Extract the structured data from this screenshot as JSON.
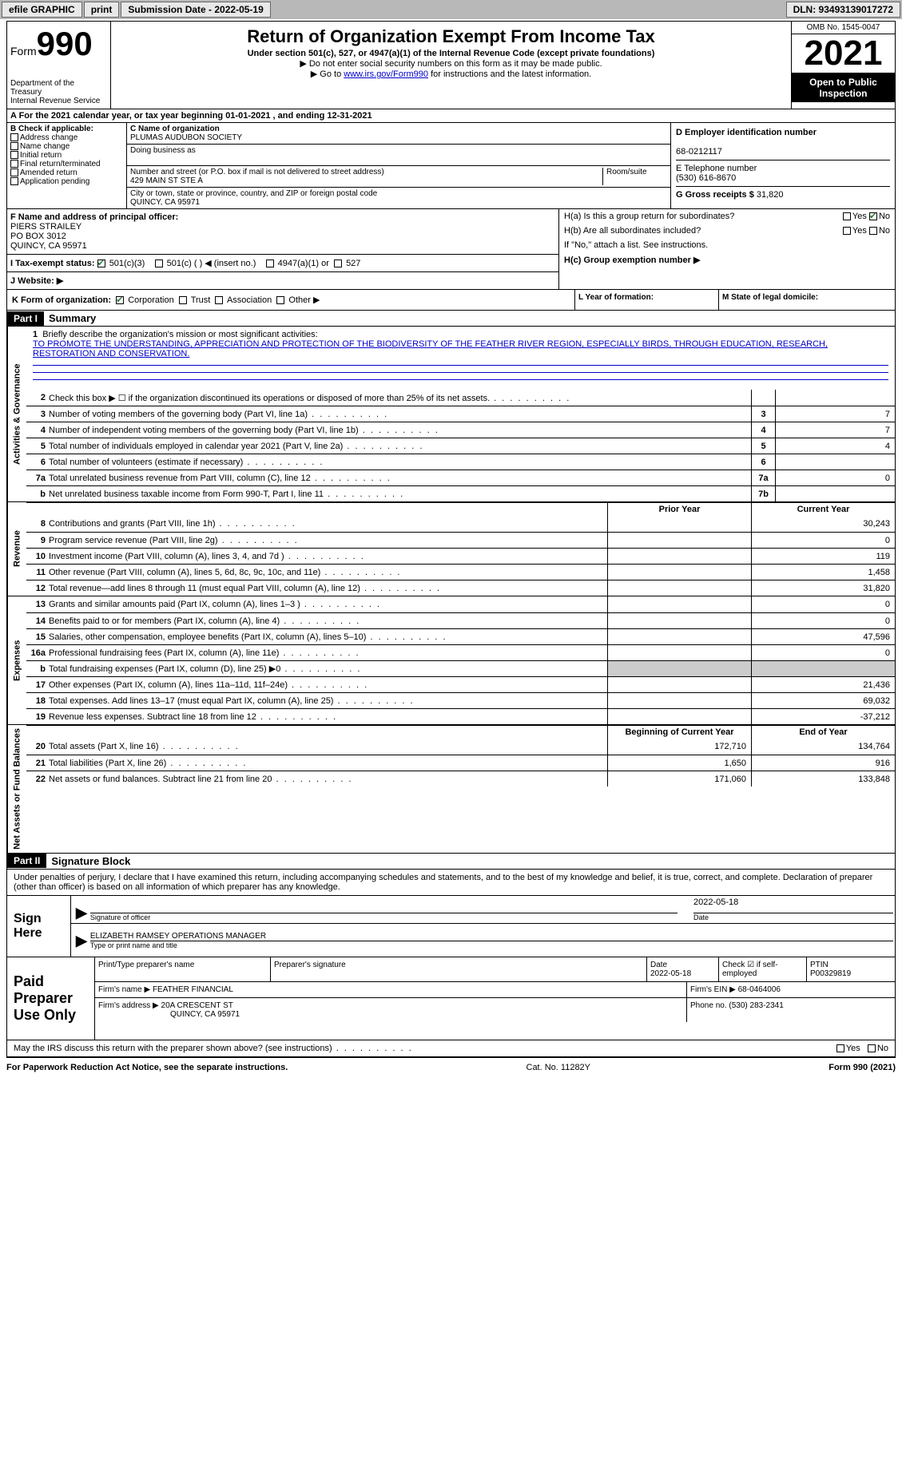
{
  "topbar": {
    "efile": "efile GRAPHIC",
    "print": "print",
    "submission_label": "Submission Date - 2022-05-19",
    "dln": "DLN: 93493139017272"
  },
  "header": {
    "form_label": "Form",
    "form_num": "990",
    "title": "Return of Organization Exempt From Income Tax",
    "subtitle": "Under section 501(c), 527, or 4947(a)(1) of the Internal Revenue Code (except private foundations)",
    "note1": "▶ Do not enter social security numbers on this form as it may be made public.",
    "note2_pre": "▶ Go to ",
    "note2_link": "www.irs.gov/Form990",
    "note2_post": " for instructions and the latest information.",
    "dept": "Department of the Treasury",
    "irs": "Internal Revenue Service",
    "omb": "OMB No. 1545-0047",
    "year": "2021",
    "open_pub": "Open to Public Inspection"
  },
  "row_a": "A For the 2021 calendar year, or tax year beginning 01-01-2021    , and ending 12-31-2021",
  "col_b": {
    "label": "B Check if applicable:",
    "opts": [
      "Address change",
      "Name change",
      "Initial return",
      "Final return/terminated",
      "Amended return",
      "Application pending"
    ]
  },
  "col_c": {
    "name_label": "C Name of organization",
    "name": "PLUMAS AUDUBON SOCIETY",
    "dba_label": "Doing business as",
    "dba": "",
    "street_label": "Number and street (or P.O. box if mail is not delivered to street address)",
    "street": "429 MAIN ST STE A",
    "room_label": "Room/suite",
    "city_label": "City or town, state or province, country, and ZIP or foreign postal code",
    "city": "QUINCY, CA  95971"
  },
  "col_d": {
    "ein_label": "D Employer identification number",
    "ein": "68-0212117",
    "phone_label": "E Telephone number",
    "phone": "(530) 616-8670",
    "gross_label": "G Gross receipts $",
    "gross": "31,820"
  },
  "section_f": {
    "label": "F Name and address of principal officer:",
    "name": "PIERS STRAILEY",
    "addr1": "PO BOX 3012",
    "addr2": "QUINCY, CA  95971"
  },
  "section_h": {
    "ha": "H(a)  Is this a group return for subordinates?",
    "ha_yes": "Yes",
    "ha_no": "No",
    "hb": "H(b)  Are all subordinates included?",
    "hb_note": "If \"No,\" attach a list. See instructions.",
    "hc": "H(c)  Group exemption number ▶"
  },
  "section_i": {
    "label": "I Tax-exempt status:",
    "opt1": "501(c)(3)",
    "opt2": "501(c) (  ) ◀ (insert no.)",
    "opt3": "4947(a)(1) or",
    "opt4": "527"
  },
  "section_j": "J  Website: ▶",
  "section_k": "K Form of organization:",
  "k_opts": [
    "Corporation",
    "Trust",
    "Association",
    "Other ▶"
  ],
  "section_l": "L Year of formation:",
  "section_m": "M State of legal domicile:",
  "part1": {
    "tag": "Part I",
    "title": "Summary"
  },
  "mission": {
    "num": "1",
    "label": "Briefly describe the organization's mission or most significant activities:",
    "text": "TO PROMOTE THE UNDERSTANDING, APPRECIATION AND PROTECTION OF THE BIODIVERSITY OF THE FEATHER RIVER REGION, ESPECIALLY BIRDS, THROUGH EDUCATION, RESEARCH, RESTORATION AND CONSERVATION."
  },
  "side_labels": {
    "gov": "Activities & Governance",
    "rev": "Revenue",
    "exp": "Expenses",
    "net": "Net Assets or Fund Balances"
  },
  "lines_gov": [
    {
      "num": "2",
      "desc": "Check this box ▶ ☐ if the organization discontinued its operations or disposed of more than 25% of its net assets.",
      "box": "",
      "val": ""
    },
    {
      "num": "3",
      "desc": "Number of voting members of the governing body (Part VI, line 1a)",
      "box": "3",
      "val": "7"
    },
    {
      "num": "4",
      "desc": "Number of independent voting members of the governing body (Part VI, line 1b)",
      "box": "4",
      "val": "7"
    },
    {
      "num": "5",
      "desc": "Total number of individuals employed in calendar year 2021 (Part V, line 2a)",
      "box": "5",
      "val": "4"
    },
    {
      "num": "6",
      "desc": "Total number of volunteers (estimate if necessary)",
      "box": "6",
      "val": ""
    },
    {
      "num": "7a",
      "desc": "Total unrelated business revenue from Part VIII, column (C), line 12",
      "box": "7a",
      "val": "0"
    },
    {
      "num": "b",
      "desc": "Net unrelated business taxable income from Form 990-T, Part I, line 11",
      "box": "7b",
      "val": ""
    }
  ],
  "col_headers": {
    "prior": "Prior Year",
    "current": "Current Year"
  },
  "lines_rev": [
    {
      "num": "8",
      "desc": "Contributions and grants (Part VIII, line 1h)",
      "prior": "",
      "cur": "30,243"
    },
    {
      "num": "9",
      "desc": "Program service revenue (Part VIII, line 2g)",
      "prior": "",
      "cur": "0"
    },
    {
      "num": "10",
      "desc": "Investment income (Part VIII, column (A), lines 3, 4, and 7d )",
      "prior": "",
      "cur": "119"
    },
    {
      "num": "11",
      "desc": "Other revenue (Part VIII, column (A), lines 5, 6d, 8c, 9c, 10c, and 11e)",
      "prior": "",
      "cur": "1,458"
    },
    {
      "num": "12",
      "desc": "Total revenue—add lines 8 through 11 (must equal Part VIII, column (A), line 12)",
      "prior": "",
      "cur": "31,820"
    }
  ],
  "lines_exp": [
    {
      "num": "13",
      "desc": "Grants and similar amounts paid (Part IX, column (A), lines 1–3 )",
      "prior": "",
      "cur": "0"
    },
    {
      "num": "14",
      "desc": "Benefits paid to or for members (Part IX, column (A), line 4)",
      "prior": "",
      "cur": "0"
    },
    {
      "num": "15",
      "desc": "Salaries, other compensation, employee benefits (Part IX, column (A), lines 5–10)",
      "prior": "",
      "cur": "47,596"
    },
    {
      "num": "16a",
      "desc": "Professional fundraising fees (Part IX, column (A), line 11e)",
      "prior": "",
      "cur": "0"
    },
    {
      "num": "b",
      "desc": "Total fundraising expenses (Part IX, column (D), line 25) ▶0",
      "prior": "shaded",
      "cur": "shaded"
    },
    {
      "num": "17",
      "desc": "Other expenses (Part IX, column (A), lines 11a–11d, 11f–24e)",
      "prior": "",
      "cur": "21,436"
    },
    {
      "num": "18",
      "desc": "Total expenses. Add lines 13–17 (must equal Part IX, column (A), line 25)",
      "prior": "",
      "cur": "69,032"
    },
    {
      "num": "19",
      "desc": "Revenue less expenses. Subtract line 18 from line 12",
      "prior": "",
      "cur": "-37,212"
    }
  ],
  "net_headers": {
    "begin": "Beginning of Current Year",
    "end": "End of Year"
  },
  "lines_net": [
    {
      "num": "20",
      "desc": "Total assets (Part X, line 16)",
      "prior": "172,710",
      "cur": "134,764"
    },
    {
      "num": "21",
      "desc": "Total liabilities (Part X, line 26)",
      "prior": "1,650",
      "cur": "916"
    },
    {
      "num": "22",
      "desc": "Net assets or fund balances. Subtract line 21 from line 20",
      "prior": "171,060",
      "cur": "133,848"
    }
  ],
  "part2": {
    "tag": "Part II",
    "title": "Signature Block"
  },
  "penalties": "Under penalties of perjury, I declare that I have examined this return, including accompanying schedules and statements, and to the best of my knowledge and belief, it is true, correct, and complete. Declaration of preparer (other than officer) is based on all information of which preparer has any knowledge.",
  "sign": {
    "label": "Sign Here",
    "sig_officer": "Signature of officer",
    "sig_date": "2022-05-18",
    "date_label": "Date",
    "name": "ELIZABETH RAMSEY OPERATIONS MANAGER",
    "name_label": "Type or print name and title"
  },
  "paid": {
    "label": "Paid Preparer Use Only",
    "print_name_label": "Print/Type preparer's name",
    "print_name": "",
    "prep_sig_label": "Preparer's signature",
    "date_label": "Date",
    "date": "2022-05-18",
    "check_label": "Check ☑ if self-employed",
    "ptin_label": "PTIN",
    "ptin": "P00329819",
    "firm_name_label": "Firm's name    ▶",
    "firm_name": "FEATHER FINANCIAL",
    "firm_ein_label": "Firm's EIN ▶",
    "firm_ein": "68-0464006",
    "firm_addr_label": "Firm's address ▶",
    "firm_addr1": "20A CRESCENT ST",
    "firm_addr2": "QUINCY, CA  95971",
    "phone_label": "Phone no.",
    "phone": "(530) 283-2341"
  },
  "may_irs": "May the IRS discuss this return with the preparer shown above? (see instructions)",
  "may_yes": "Yes",
  "may_no": "No",
  "footer": {
    "left": "For Paperwork Reduction Act Notice, see the separate instructions.",
    "mid": "Cat. No. 11282Y",
    "right": "Form 990 (2021)"
  }
}
